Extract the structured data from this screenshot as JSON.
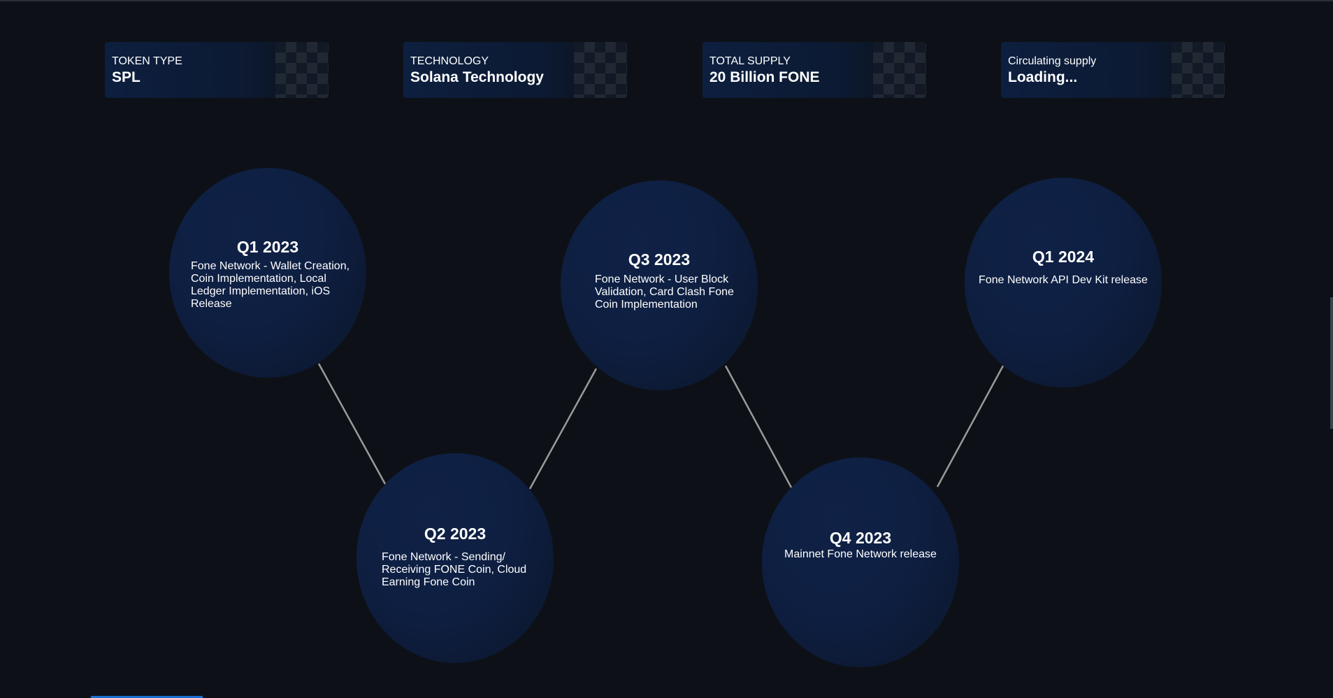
{
  "stats": [
    {
      "label": "TOKEN TYPE",
      "value": "SPL"
    },
    {
      "label": "TECHNOLOGY",
      "value": "Solana Technology"
    },
    {
      "label": "TOTAL SUPPLY",
      "value": "20 Billion FONE"
    },
    {
      "label": "Circulating supply",
      "value": "Loading..."
    }
  ],
  "roadmap": [
    {
      "title": "Q1 2023",
      "description": "Fone Network - Wallet Creation, Coin Implementation, Local Ledger Implementation, iOS Release"
    },
    {
      "title": "Q2 2023",
      "description": "Fone Network - Sending/ Receiving FONE Coin, Cloud Earning Fone Coin"
    },
    {
      "title": "Q3 2023",
      "description": "Fone Network - User Block Validation, Card Clash Fone Coin Implementation"
    },
    {
      "title": "Q4 2023",
      "description": "Mainnet Fone Network release"
    },
    {
      "title": "Q1 2024",
      "description": "Fone Network API Dev Kit release"
    }
  ],
  "colors": {
    "background": "#0d1117",
    "card": "#0d1f3f",
    "milestone": "#0e1f42",
    "connector": "#9a9a9a",
    "accent": "#1a6fd0"
  }
}
